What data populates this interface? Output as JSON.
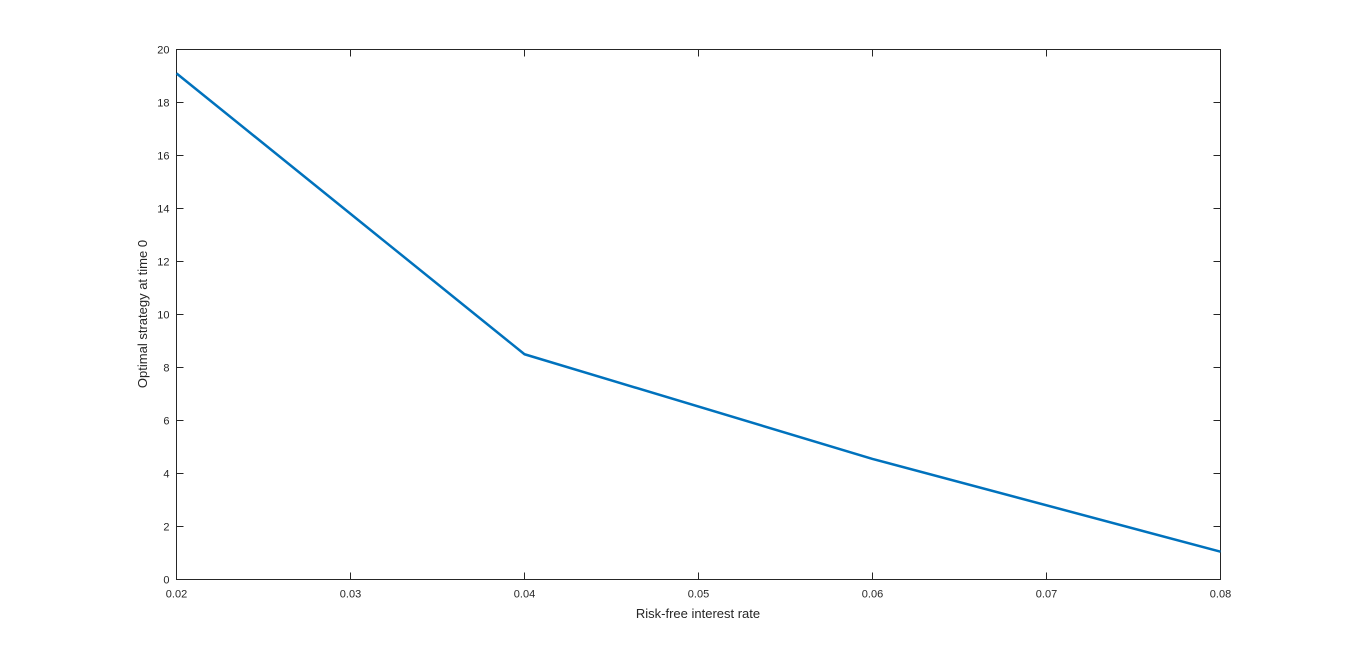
{
  "chart_data": {
    "type": "line",
    "xlabel": "Risk-free interest rate",
    "ylabel": "Optimal strategy at time 0",
    "xlim": [
      0.02,
      0.08
    ],
    "ylim": [
      0,
      20
    ],
    "xticks": [
      0.02,
      0.03,
      0.04,
      0.05,
      0.06,
      0.07,
      0.08
    ],
    "xtick_labels": [
      "0.02",
      "0.03",
      "0.04",
      "0.05",
      "0.06",
      "0.07",
      "0.08"
    ],
    "yticks": [
      0,
      2,
      4,
      6,
      8,
      10,
      12,
      14,
      16,
      18,
      20
    ],
    "ytick_labels": [
      "0",
      "2",
      "4",
      "6",
      "8",
      "10",
      "12",
      "14",
      "16",
      "18",
      "20"
    ],
    "grid": false,
    "legend": "none",
    "series": [
      {
        "color": "#0072BD",
        "x": [
          0.02,
          0.04,
          0.06,
          0.08
        ],
        "y": [
          19.1,
          8.5,
          4.55,
          1.05
        ]
      }
    ]
  }
}
